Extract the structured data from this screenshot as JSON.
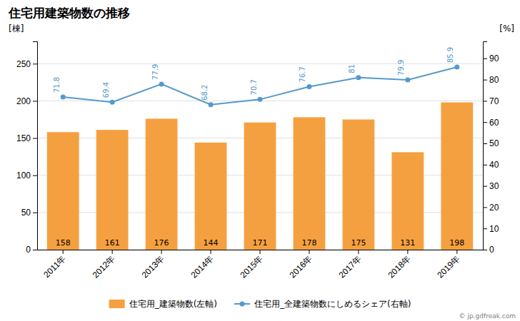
{
  "chart_data": {
    "type": "bar",
    "title": "住宅用建築物数の推移",
    "categories": [
      "2011年",
      "2012年",
      "2013年",
      "2014年",
      "2015年",
      "2016年",
      "2017年",
      "2018年",
      "2019年"
    ],
    "series": [
      {
        "name": "住宅用_建築物数(左軸)",
        "type": "bar",
        "color": "#f5a040",
        "values": [
          158,
          161,
          176,
          144,
          171,
          178,
          175,
          131,
          198
        ]
      },
      {
        "name": "住宅用_全建築物数にしめるシェア(右軸)",
        "type": "line",
        "color": "#5599cc",
        "marker": "circle",
        "axis": "y2",
        "values": [
          71.8,
          69.4,
          77.9,
          68.2,
          70.7,
          76.7,
          81.0,
          79.9,
          85.9
        ]
      }
    ],
    "y_label": "[棟]",
    "y2_label": "[%]",
    "ylim": [
      0,
      280
    ],
    "yticks": [
      0,
      50,
      100,
      150,
      200,
      250
    ],
    "y2lim": [
      0,
      98
    ],
    "y2ticks": [
      0,
      10,
      20,
      30,
      40,
      50,
      60,
      70,
      80,
      90
    ],
    "grid": true,
    "data_labels": true,
    "legend": "bottom",
    "annotations": [
      "© jp.gdfreak.com"
    ]
  }
}
